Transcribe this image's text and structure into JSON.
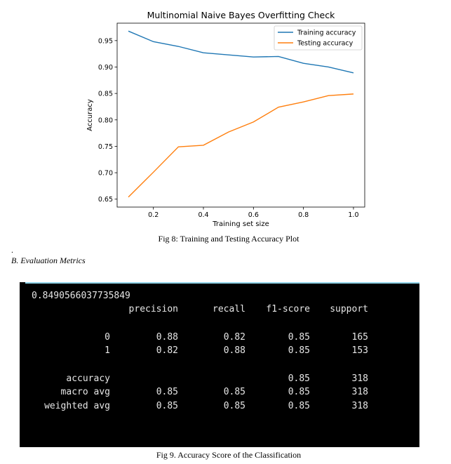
{
  "chart_data": {
    "type": "line",
    "title": "Multinomial Naive Bayes Overfitting Check",
    "xlabel": "Training set size",
    "ylabel": "Accuracy",
    "x": [
      0.1,
      0.2,
      0.3,
      0.4,
      0.5,
      0.6,
      0.7,
      0.8,
      0.9,
      1.0
    ],
    "series": [
      {
        "name": "Training accuracy",
        "color": "#1f77b4",
        "values": [
          0.968,
          0.948,
          0.939,
          0.927,
          0.923,
          0.919,
          0.92,
          0.907,
          0.9,
          0.889
        ]
      },
      {
        "name": "Testing accuracy",
        "color": "#ff7f0e",
        "values": [
          0.654,
          0.701,
          0.749,
          0.752,
          0.777,
          0.796,
          0.824,
          0.834,
          0.846,
          0.849
        ]
      }
    ],
    "xlim": [
      0.055,
      1.045
    ],
    "ylim": [
      0.635,
      0.983
    ],
    "xticks": [
      0.2,
      0.4,
      0.6,
      0.8,
      1.0
    ],
    "xtick_labels": [
      "0.2",
      "0.4",
      "0.6",
      "0.8",
      "1.0"
    ],
    "yticks": [
      0.65,
      0.7,
      0.75,
      0.8,
      0.85,
      0.9,
      0.95
    ],
    "ytick_labels": [
      "0.65",
      "0.70",
      "0.75",
      "0.80",
      "0.85",
      "0.90",
      "0.95"
    ],
    "grid": false,
    "legend": "top-right"
  },
  "fig8_caption": "Fig 8: Training and Testing Accuracy Plot",
  "dot": ".",
  "section_heading": "B. Evaluation Metrics",
  "terminal": {
    "accuracy_value": "0.8490566037735849",
    "headers": [
      "precision",
      "recall",
      "f1-score",
      "support"
    ],
    "rows": [
      {
        "label": "0",
        "cells": [
          "0.88",
          "0.82",
          "0.85",
          "165"
        ]
      },
      {
        "label": "1",
        "cells": [
          "0.82",
          "0.88",
          "0.85",
          "153"
        ]
      },
      {
        "label": "accuracy",
        "cells": [
          "",
          "",
          "0.85",
          "318"
        ]
      },
      {
        "label": "macro avg",
        "cells": [
          "0.85",
          "0.85",
          "0.85",
          "318"
        ]
      },
      {
        "label": "weighted avg",
        "cells": [
          "0.85",
          "0.85",
          "0.85",
          "318"
        ]
      }
    ]
  },
  "fig9_caption": "Fig 9. Accuracy Score of the Classification"
}
